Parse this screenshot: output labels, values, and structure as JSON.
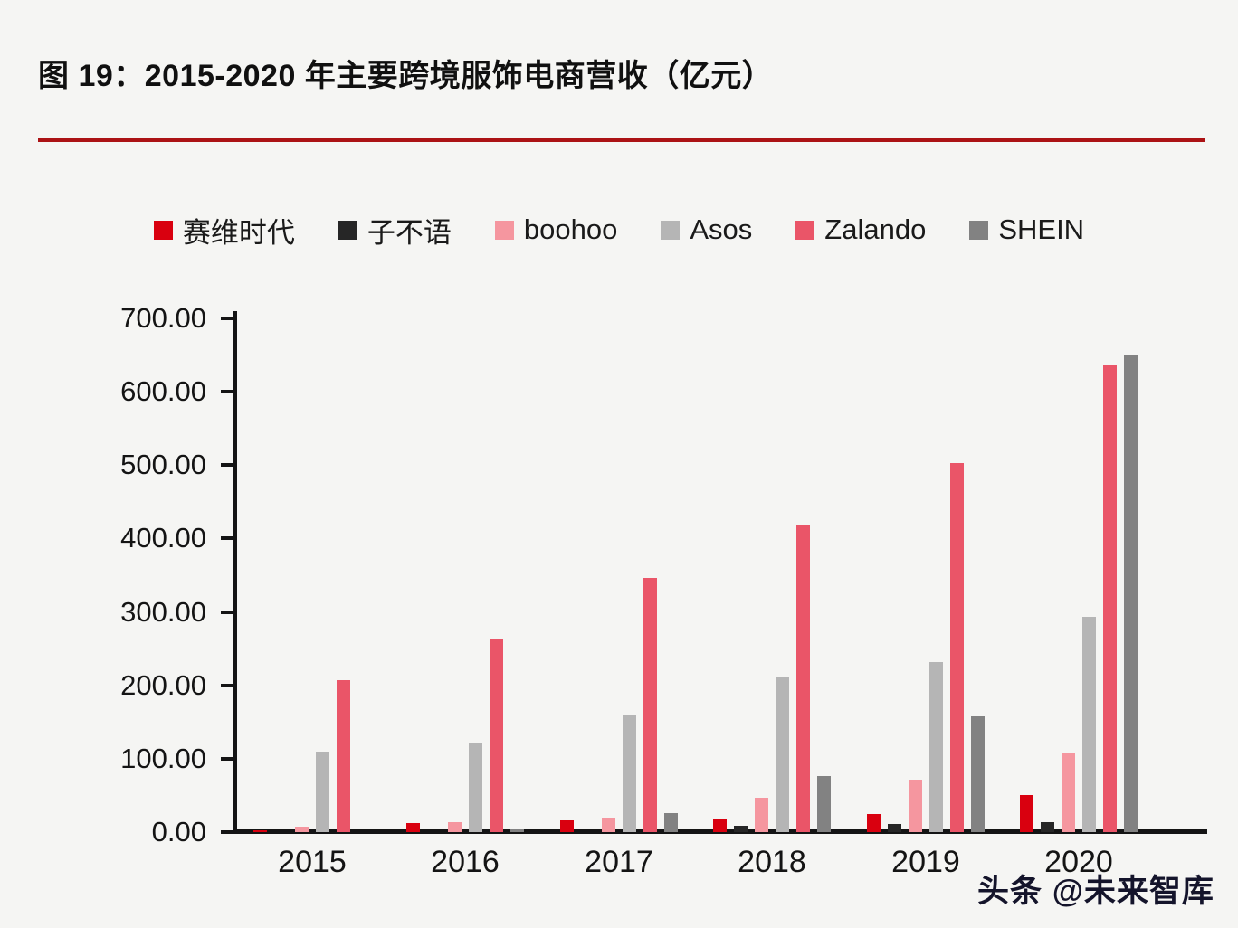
{
  "page": {
    "title": "图 19：2015-2020 年主要跨境服饰电商营收（亿元）",
    "watermark": "头条 @未来智库",
    "colors": {
      "background": "#f5f5f3",
      "title_rule": "#ab1214",
      "axis": "#141414",
      "watermark": "#14142b"
    }
  },
  "chart_data": {
    "type": "bar",
    "title": "图 19：2015-2020 年主要跨境服饰电商营收（亿元）",
    "unit_label": "亿元",
    "categories": [
      "2015",
      "2016",
      "2017",
      "2018",
      "2019",
      "2020"
    ],
    "series": [
      {
        "name": "赛维时代",
        "color": "#d9000f",
        "values": [
          2,
          12,
          16,
          19,
          25,
          50
        ]
      },
      {
        "name": "子不语",
        "color": "#262626",
        "values": [
          0,
          0,
          0,
          9,
          11,
          14
        ]
      },
      {
        "name": "boohoo",
        "color": "#f5969f",
        "values": [
          8,
          13,
          20,
          47,
          72,
          107
        ]
      },
      {
        "name": "Asos",
        "color": "#b5b5b5",
        "values": [
          110,
          122,
          160,
          211,
          232,
          293
        ]
      },
      {
        "name": "Zalando",
        "color": "#ea5568",
        "values": [
          207,
          262,
          346,
          419,
          503,
          637
        ]
      },
      {
        "name": "SHEIN",
        "color": "#828282",
        "values": [
          0,
          5,
          26,
          77,
          158,
          650
        ]
      }
    ],
    "ylim": [
      0,
      700
    ],
    "ytick_step": 100,
    "ytick_labels": [
      "700.00",
      "600.00",
      "500.00",
      "400.00",
      "300.00",
      "200.00",
      "100.00",
      "0.00"
    ],
    "legend_position": "top",
    "grid": false
  }
}
